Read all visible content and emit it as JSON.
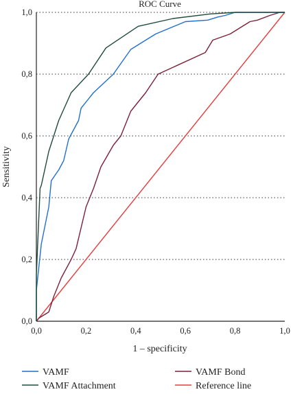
{
  "chart_data": {
    "type": "line",
    "title": "ROC Curve",
    "xlabel": "1 – specificity",
    "ylabel": "Sensitivity",
    "xlim": [
      0,
      1
    ],
    "ylim": [
      0,
      1
    ],
    "x_ticks": [
      "0,0",
      "0,2",
      "0,4",
      "0,6",
      "0,8",
      "1,0"
    ],
    "y_ticks": [
      "0,0",
      "0,2",
      "0,4",
      "0,6",
      "0,8",
      "1,0"
    ],
    "grid": "horizontal dotted",
    "legend_position": "bottom",
    "series": [
      {
        "name": "VAMF",
        "color": "#1f6fd1",
        "points": [
          [
            0,
            0
          ],
          [
            0,
            0.1
          ],
          [
            0.02,
            0.25
          ],
          [
            0.05,
            0.37
          ],
          [
            0.06,
            0.455
          ],
          [
            0.09,
            0.49
          ],
          [
            0.11,
            0.52
          ],
          [
            0.13,
            0.59
          ],
          [
            0.17,
            0.65
          ],
          [
            0.18,
            0.69
          ],
          [
            0.23,
            0.74
          ],
          [
            0.31,
            0.8
          ],
          [
            0.38,
            0.88
          ],
          [
            0.44,
            0.91
          ],
          [
            0.48,
            0.93
          ],
          [
            0.6,
            0.97
          ],
          [
            0.69,
            0.975
          ],
          [
            0.73,
            0.985
          ],
          [
            0.76,
            0.99
          ],
          [
            0.8,
            1.0
          ],
          [
            1,
            1
          ]
        ]
      },
      {
        "name": "VAMF Attachment",
        "color": "#1e4a3a",
        "points": [
          [
            0,
            0
          ],
          [
            0,
            0.15
          ],
          [
            0.015,
            0.43
          ],
          [
            0.02,
            0.44
          ],
          [
            0.05,
            0.55
          ],
          [
            0.09,
            0.65
          ],
          [
            0.14,
            0.74
          ],
          [
            0.21,
            0.8
          ],
          [
            0.28,
            0.885
          ],
          [
            0.41,
            0.955
          ],
          [
            0.55,
            0.98
          ],
          [
            0.7,
            0.995
          ],
          [
            0.8,
            1.0
          ],
          [
            1,
            1
          ]
        ]
      },
      {
        "name": "VAMF Bond",
        "color": "#7b1f3a",
        "points": [
          [
            0,
            0
          ],
          [
            0.01,
            0.01
          ],
          [
            0.05,
            0.03
          ],
          [
            0.07,
            0.08
          ],
          [
            0.1,
            0.14
          ],
          [
            0.14,
            0.2
          ],
          [
            0.16,
            0.235
          ],
          [
            0.2,
            0.37
          ],
          [
            0.23,
            0.43
          ],
          [
            0.26,
            0.5
          ],
          [
            0.31,
            0.57
          ],
          [
            0.34,
            0.6
          ],
          [
            0.38,
            0.68
          ],
          [
            0.44,
            0.74
          ],
          [
            0.49,
            0.8
          ],
          [
            0.68,
            0.87
          ],
          [
            0.71,
            0.91
          ],
          [
            0.78,
            0.93
          ],
          [
            0.82,
            0.95
          ],
          [
            0.86,
            0.97
          ],
          [
            0.89,
            0.975
          ],
          [
            0.94,
            0.99
          ],
          [
            0.98,
            1.0
          ],
          [
            1,
            1
          ]
        ]
      },
      {
        "name": "Reference line",
        "color": "#e83a3a",
        "points": [
          [
            0,
            0
          ],
          [
            1,
            1
          ]
        ]
      }
    ]
  }
}
